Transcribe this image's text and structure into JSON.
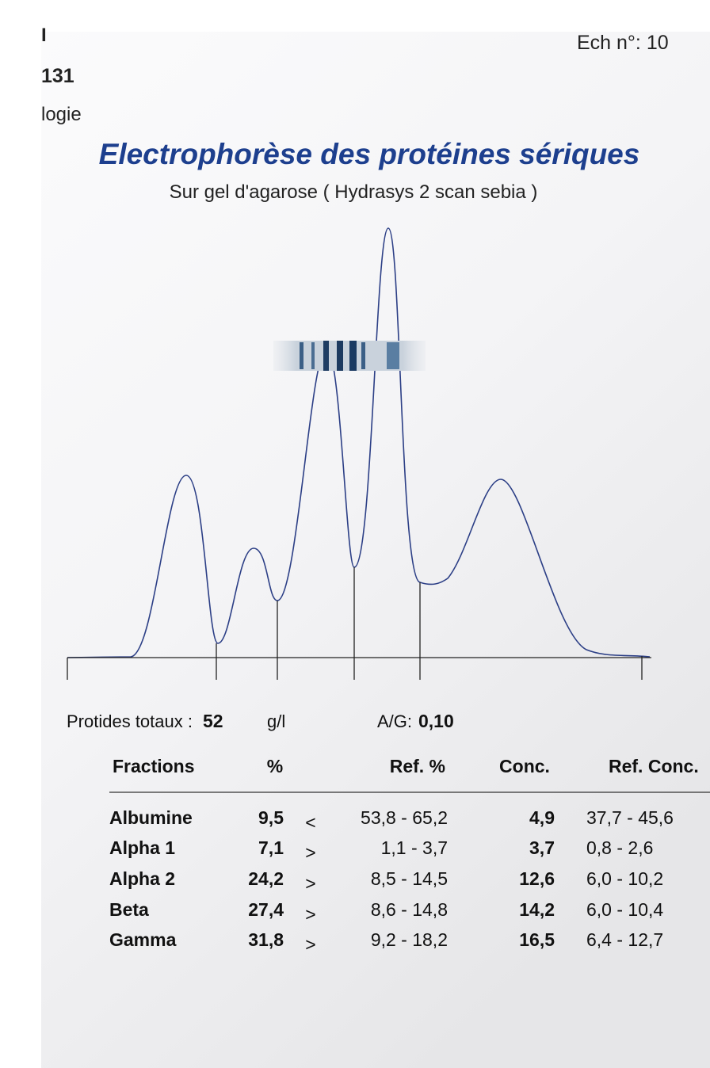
{
  "header": {
    "top_left": [
      "I",
      "131",
      "logie"
    ],
    "sample": "Ech n°: 10"
  },
  "title": "Electrophorèse des protéines sériques",
  "subtitle": "Sur gel d'agarose ( Hydrasys 2 scan sebia )",
  "summary": {
    "total_label": "Protides totaux :",
    "total_value": "52",
    "unit": "g/l",
    "ratio_label": "A/G:",
    "ratio_value": "0,10"
  },
  "table": {
    "columns": [
      "Fractions",
      "%",
      "Ref. %",
      "Conc.",
      "Ref. Conc."
    ],
    "rows": [
      [
        "Albumine",
        "9,5",
        "<",
        "53,8 - 65,2",
        "4,9",
        "37,7 - 45,6"
      ],
      [
        "Alpha 1",
        "7,1",
        ">",
        "1,1 -  3,7",
        "3,7",
        "0,8 -  2,6"
      ],
      [
        "Alpha 2",
        "24,2",
        ">",
        "8,5 - 14,5",
        "12,6",
        "6,0 - 10,2"
      ],
      [
        "Beta",
        "27,4",
        ">",
        "8,6 - 14,8",
        "14,2",
        "6,0 - 10,4"
      ],
      [
        "Gamma",
        "31,8",
        ">",
        "9,2 - 18,2",
        "16,5",
        "6,4 - 12,7"
      ]
    ]
  }
}
